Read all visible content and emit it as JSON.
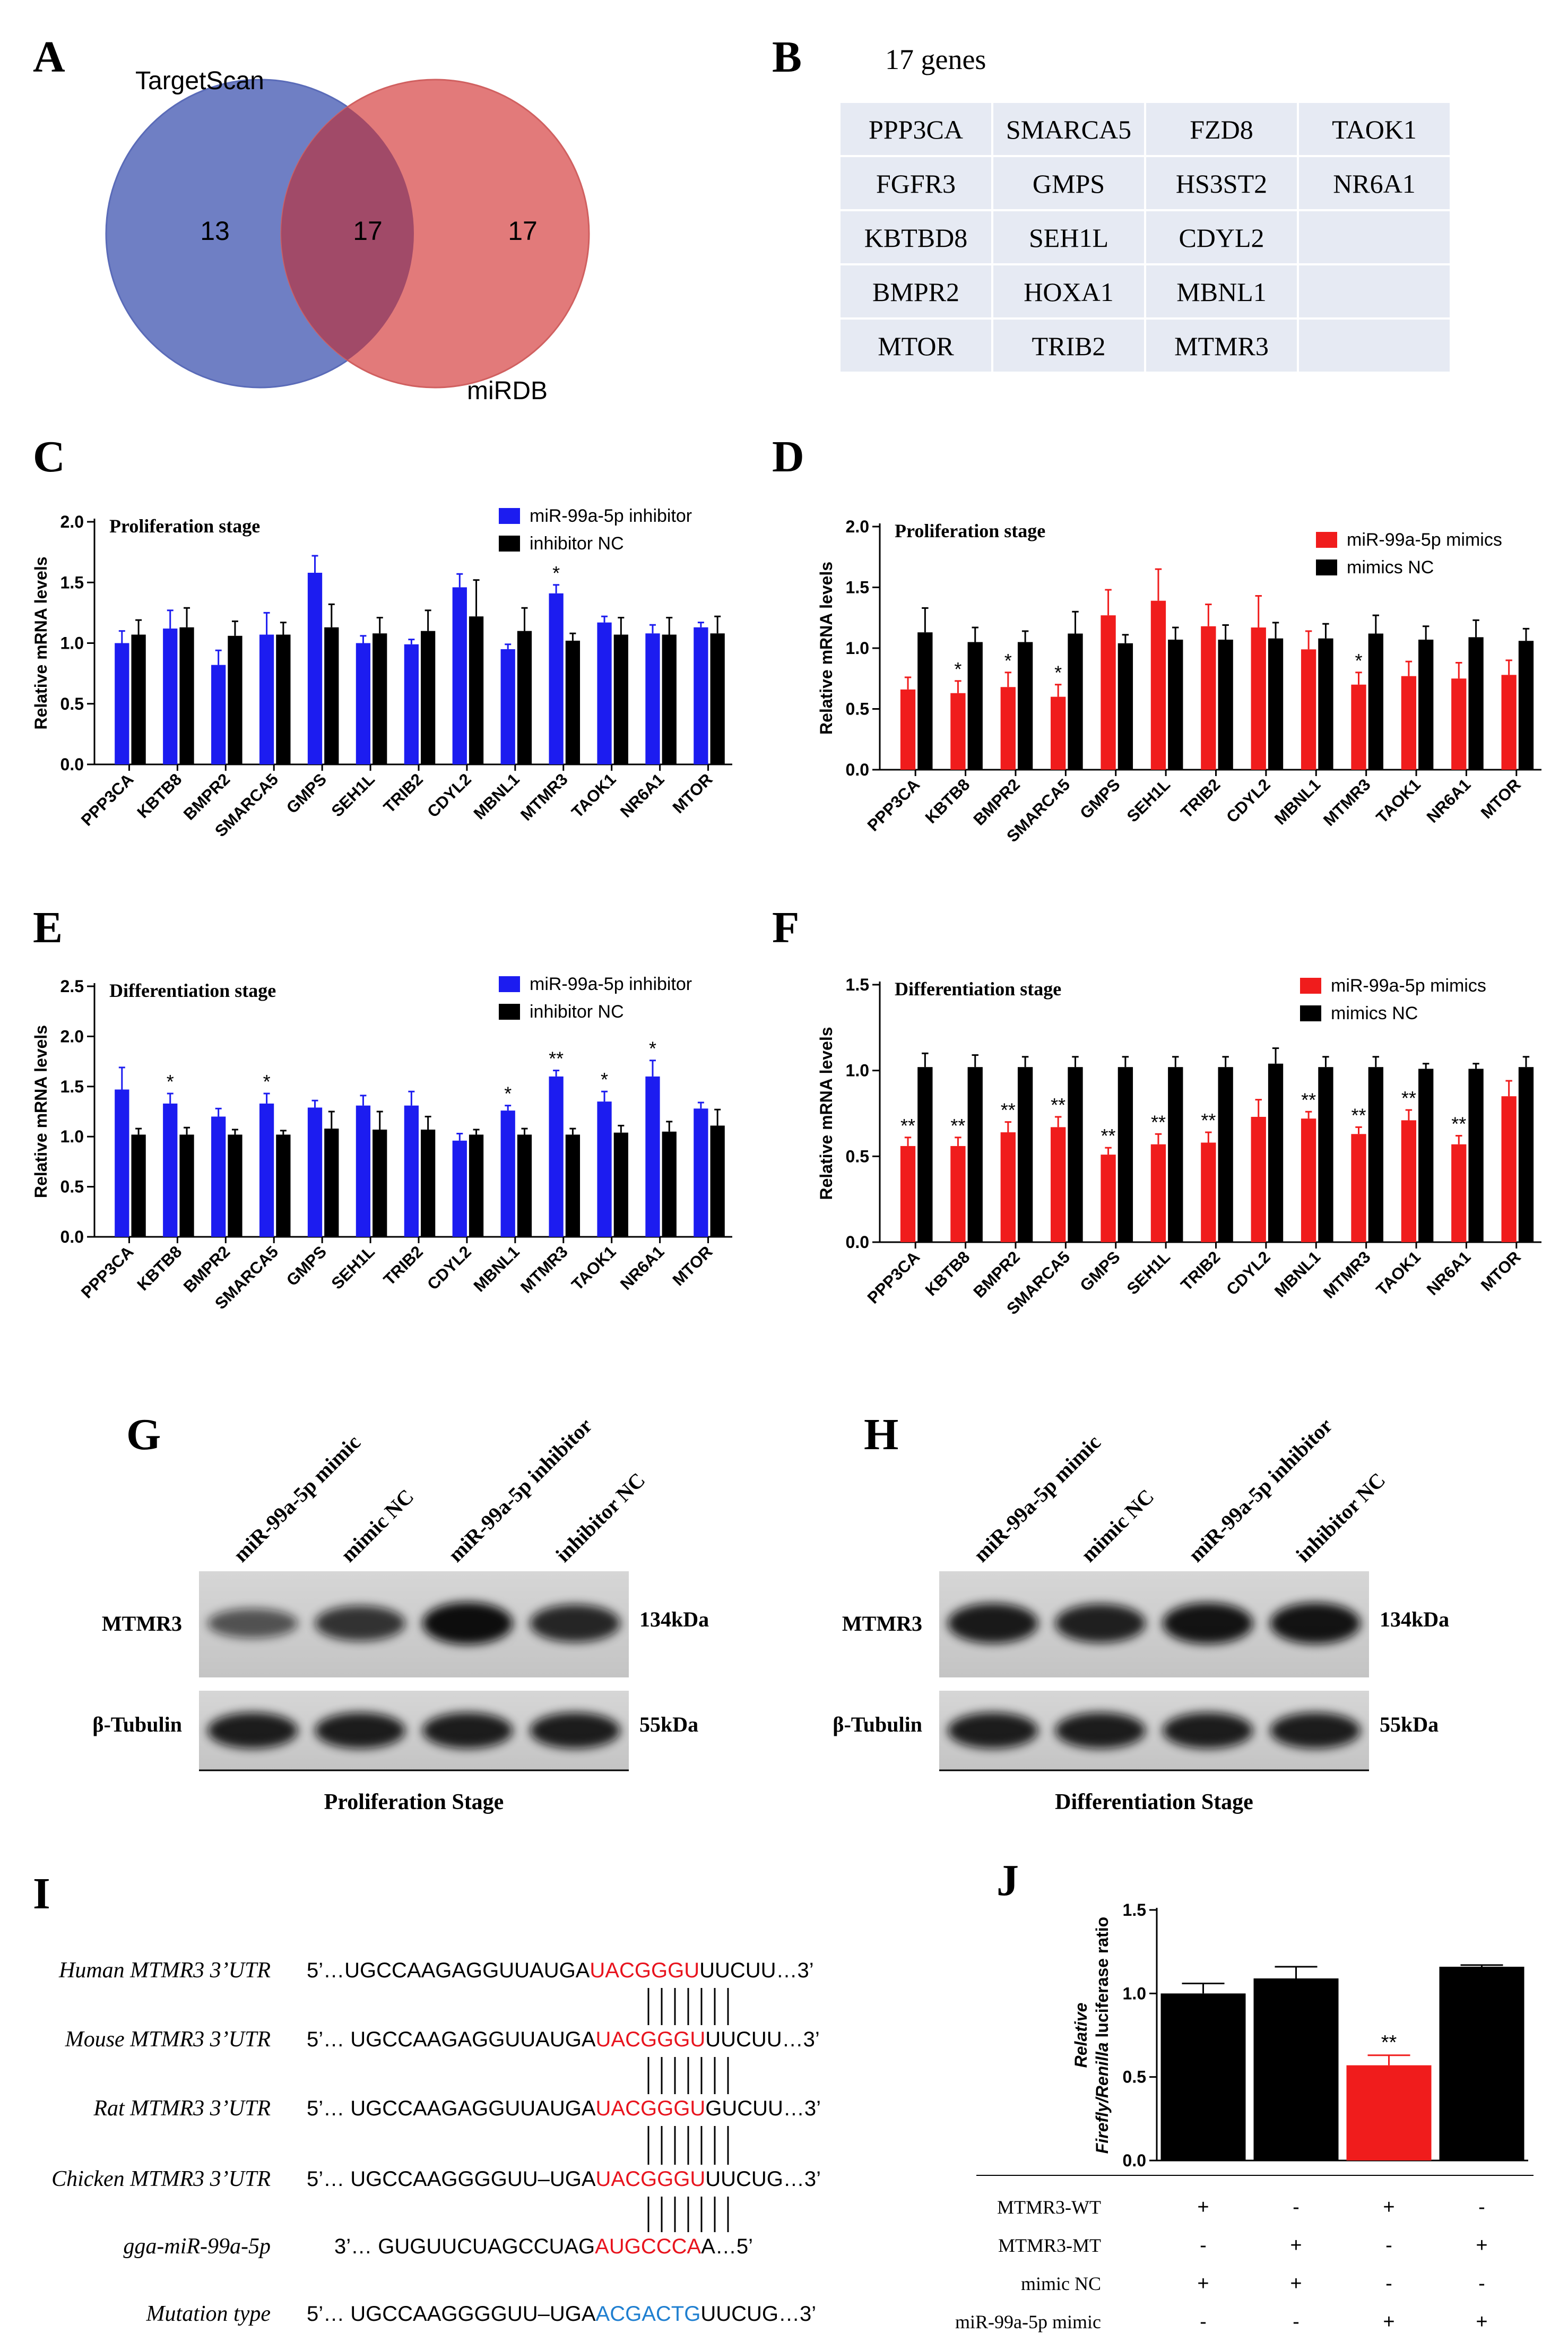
{
  "panel_labels": {
    "a": "A",
    "b": "B",
    "c": "C",
    "d": "D",
    "e": "E",
    "f": "F",
    "g": "G",
    "h": "H",
    "i": "I",
    "j": "J"
  },
  "venn": {
    "left_label": "TargetScan",
    "right_label": "miRDB",
    "left_only": "13",
    "overlap": "17",
    "right_only": "17"
  },
  "genes": {
    "header": "17 genes",
    "rows": [
      [
        "PPP3CA",
        "SMARCA5",
        "FZD8",
        "TAOK1"
      ],
      [
        "FGFR3",
        "GMPS",
        "HS3ST2",
        "NR6A1"
      ],
      [
        "KBTBD8",
        "SEH1L",
        "CDYL2",
        ""
      ],
      [
        "BMPR2",
        "HOXA1",
        "MBNL1",
        ""
      ],
      [
        "MTOR",
        "TRIB2",
        "MTMR3",
        ""
      ]
    ]
  },
  "colors": {
    "blue": "#1c1cf0",
    "red": "#f01c1c",
    "black": "#000000",
    "venn_blue": "#6f7fc4",
    "venn_red": "#e27a7a",
    "venn_overlap": "#a14a68",
    "table_bg": "#e6eaf3",
    "seq_red": "#e8141e",
    "seq_blue": "#1f7fd0"
  },
  "chart_data": [
    {
      "id": "C",
      "type": "bar",
      "title": "Proliferation stage",
      "ylabel": "Relative mRNA levels",
      "ylim": [
        0,
        2.0
      ],
      "yticks": [
        "0.0",
        "0.5",
        "1.0",
        "1.5",
        "2.0"
      ],
      "categories": [
        "PPP3CA",
        "KBTB8",
        "BMPR2",
        "SMARCA5",
        "GMPS",
        "SEH1L",
        "TRIB2",
        "CDYL2",
        "MBNL1",
        "MTMR3",
        "TAOK1",
        "NR6A1",
        "MTOR"
      ],
      "series": [
        {
          "name": "miR-99a-5p inhibitor",
          "color": "#1c1cf0",
          "values": [
            1.0,
            1.12,
            0.82,
            1.07,
            1.58,
            1.0,
            0.99,
            1.46,
            0.95,
            1.41,
            1.17,
            1.08,
            1.13
          ],
          "errors": [
            0.1,
            0.15,
            0.12,
            0.18,
            0.14,
            0.06,
            0.04,
            0.11,
            0.04,
            0.07,
            0.05,
            0.07,
            0.04
          ]
        },
        {
          "name": "inhibitor NC",
          "color": "#000000",
          "values": [
            1.07,
            1.13,
            1.06,
            1.07,
            1.13,
            1.08,
            1.1,
            1.22,
            1.1,
            1.02,
            1.07,
            1.07,
            1.08
          ],
          "errors": [
            0.12,
            0.16,
            0.12,
            0.1,
            0.19,
            0.13,
            0.17,
            0.3,
            0.19,
            0.06,
            0.14,
            0.14,
            0.14
          ]
        }
      ],
      "stars": [
        {
          "cat": 9,
          "text": "*"
        }
      ]
    },
    {
      "id": "D",
      "type": "bar",
      "title": "Proliferation stage",
      "ylabel": "Relative mRNA levels",
      "ylim": [
        0,
        2.0
      ],
      "yticks": [
        "0.0",
        "0.5",
        "1.0",
        "1.5",
        "2.0"
      ],
      "categories": [
        "PPP3CA",
        "KBTB8",
        "BMPR2",
        "SMARCA5",
        "GMPS",
        "SEH1L",
        "TRIB2",
        "CDYL2",
        "MBNL1",
        "MTMR3",
        "TAOK1",
        "NR6A1",
        "MTOR"
      ],
      "series": [
        {
          "name": "miR-99a-5p mimics",
          "color": "#f01c1c",
          "values": [
            0.66,
            0.63,
            0.68,
            0.6,
            1.27,
            1.39,
            1.18,
            1.17,
            0.99,
            0.7,
            0.77,
            0.75,
            0.78
          ],
          "errors": [
            0.1,
            0.1,
            0.12,
            0.1,
            0.21,
            0.26,
            0.18,
            0.26,
            0.15,
            0.1,
            0.12,
            0.13,
            0.12
          ]
        },
        {
          "name": "mimics NC",
          "color": "#000000",
          "values": [
            1.13,
            1.05,
            1.05,
            1.12,
            1.04,
            1.07,
            1.07,
            1.08,
            1.08,
            1.12,
            1.07,
            1.09,
            1.06
          ],
          "errors": [
            0.2,
            0.12,
            0.09,
            0.18,
            0.07,
            0.1,
            0.12,
            0.13,
            0.12,
            0.15,
            0.11,
            0.14,
            0.1
          ]
        }
      ],
      "stars": [
        {
          "cat": 1,
          "text": "*"
        },
        {
          "cat": 2,
          "text": "*"
        },
        {
          "cat": 3,
          "text": "*"
        },
        {
          "cat": 9,
          "text": "*"
        }
      ]
    },
    {
      "id": "E",
      "type": "bar",
      "title": "Differentiation stage",
      "ylabel": "Relative mRNA levels",
      "ylim": [
        0,
        2.5
      ],
      "yticks": [
        "0.0",
        "0.5",
        "1.0",
        "1.5",
        "2.0",
        "2.5"
      ],
      "categories": [
        "PPP3CA",
        "KBTB8",
        "BMPR2",
        "SMARCA5",
        "GMPS",
        "SEH1L",
        "TRIB2",
        "CDYL2",
        "MBNL1",
        "MTMR3",
        "TAOK1",
        "NR6A1",
        "MTOR"
      ],
      "series": [
        {
          "name": "miR-99a-5p inhibitor",
          "color": "#1c1cf0",
          "values": [
            1.47,
            1.33,
            1.2,
            1.33,
            1.29,
            1.31,
            1.31,
            0.96,
            1.26,
            1.6,
            1.35,
            1.6,
            1.28
          ],
          "errors": [
            0.22,
            0.1,
            0.08,
            0.1,
            0.07,
            0.1,
            0.14,
            0.07,
            0.05,
            0.06,
            0.1,
            0.16,
            0.06
          ]
        },
        {
          "name": "inhibitor NC",
          "color": "#000000",
          "values": [
            1.02,
            1.02,
            1.02,
            1.02,
            1.08,
            1.07,
            1.07,
            1.02,
            1.02,
            1.02,
            1.04,
            1.05,
            1.11
          ],
          "errors": [
            0.06,
            0.07,
            0.05,
            0.04,
            0.17,
            0.18,
            0.13,
            0.05,
            0.06,
            0.06,
            0.07,
            0.1,
            0.16
          ]
        }
      ],
      "stars": [
        {
          "cat": 1,
          "text": "*"
        },
        {
          "cat": 3,
          "text": "*"
        },
        {
          "cat": 8,
          "text": "*"
        },
        {
          "cat": 9,
          "text": "**"
        },
        {
          "cat": 10,
          "text": "*"
        },
        {
          "cat": 11,
          "text": "*"
        }
      ]
    },
    {
      "id": "F",
      "type": "bar",
      "title": "Differentiation stage",
      "ylabel": "Relative mRNA levels",
      "ylim": [
        0,
        1.5
      ],
      "yticks": [
        "0.0",
        "0.5",
        "1.0",
        "1.5"
      ],
      "categories": [
        "PPP3CA",
        "KBTB8",
        "BMPR2",
        "SMARCA5",
        "GMPS",
        "SEH1L",
        "TRIB2",
        "CDYL2",
        "MBNL1",
        "MTMR3",
        "TAOK1",
        "NR6A1",
        "MTOR"
      ],
      "series": [
        {
          "name": "miR-99a-5p mimics",
          "color": "#f01c1c",
          "values": [
            0.56,
            0.56,
            0.64,
            0.67,
            0.51,
            0.57,
            0.58,
            0.73,
            0.72,
            0.63,
            0.71,
            0.57,
            0.85
          ],
          "errors": [
            0.05,
            0.05,
            0.06,
            0.06,
            0.04,
            0.06,
            0.06,
            0.1,
            0.04,
            0.04,
            0.06,
            0.05,
            0.09
          ]
        },
        {
          "name": "mimics NC",
          "color": "#000000",
          "values": [
            1.02,
            1.02,
            1.02,
            1.02,
            1.02,
            1.02,
            1.02,
            1.04,
            1.02,
            1.02,
            1.01,
            1.01,
            1.02
          ],
          "errors": [
            0.08,
            0.07,
            0.06,
            0.06,
            0.06,
            0.06,
            0.06,
            0.09,
            0.06,
            0.06,
            0.03,
            0.03,
            0.06
          ]
        }
      ],
      "stars": [
        {
          "cat": 0,
          "text": "**"
        },
        {
          "cat": 1,
          "text": "**"
        },
        {
          "cat": 2,
          "text": "**"
        },
        {
          "cat": 3,
          "text": "**"
        },
        {
          "cat": 4,
          "text": "**"
        },
        {
          "cat": 5,
          "text": "**"
        },
        {
          "cat": 6,
          "text": "**"
        },
        {
          "cat": 8,
          "text": "**"
        },
        {
          "cat": 9,
          "text": "**"
        },
        {
          "cat": 10,
          "text": "**"
        },
        {
          "cat": 11,
          "text": "**"
        }
      ]
    },
    {
      "id": "J",
      "type": "bar",
      "ylabel_line1": "Relative",
      "ylabel_line2_a": "Firefly/Renilla",
      "ylabel_line2_b": " luciferase ratio",
      "ylim": [
        0,
        1.5
      ],
      "yticks": [
        "0.0",
        "0.5",
        "1.0",
        "1.5"
      ],
      "values": [
        1.0,
        1.09,
        0.57,
        1.16
      ],
      "errors": [
        0.06,
        0.07,
        0.06,
        0.01
      ],
      "colors": [
        "#000000",
        "#000000",
        "#f01c1c",
        "#000000"
      ],
      "stars": [
        {
          "cat": 2,
          "text": "**"
        }
      ],
      "conditions": [
        {
          "label": "MTMR3-WT",
          "marks": [
            "+",
            "-",
            "+",
            "-"
          ]
        },
        {
          "label": "MTMR3-MT",
          "marks": [
            "-",
            "+",
            "-",
            "+"
          ]
        },
        {
          "label": "mimic NC",
          "marks": [
            "+",
            "+",
            "-",
            "-"
          ]
        },
        {
          "label": "miR-99a-5p mimic",
          "marks": [
            "-",
            "-",
            "+",
            "+"
          ]
        }
      ]
    }
  ],
  "blots": {
    "g": {
      "lanes": [
        "miR-99a-5p mimic",
        "mimic NC",
        "miR-99a-5p inhibitor",
        "inhibitor NC"
      ],
      "row1": "MTMR3",
      "row1_kda": "134kDa",
      "row2": "β-Tubulin",
      "row2_kda": "55kDa",
      "caption": "Proliferation Stage",
      "mtmr3_intensity": [
        0.45,
        0.7,
        1.0,
        0.8
      ]
    },
    "h": {
      "lanes": [
        "miR-99a-5p mimic",
        "mimic NC",
        "miR-99a-5p inhibitor",
        "inhibitor NC"
      ],
      "row1": "MTMR3",
      "row1_kda": "134kDa",
      "row2": "β-Tubulin",
      "row2_kda": "55kDa",
      "caption": "Differentiation Stage",
      "mtmr3_intensity": [
        0.9,
        0.85,
        0.95,
        0.95
      ]
    }
  },
  "sequences": {
    "rows": [
      {
        "label": "Human MTMR3 3’UTR",
        "pre": "5’…UGCCAAGAGGUUAUGA",
        "seed": "UACGGGU",
        "post": "UUCUU…3’"
      },
      {
        "label": "Mouse MTMR3 3’UTR",
        "pre": "5’… UGCCAAGAGGUUAUGA",
        "seed": "UACGGGU",
        "post": "UUCUU…3’"
      },
      {
        "label": "Rat MTMR3 3’UTR",
        "pre": "5’… UGCCAAGAGGUUAUGA",
        "seed": "UACGGGU",
        "post": "GUCUU…3’"
      },
      {
        "label": "Chicken MTMR3 3’UTR",
        "pre": "5’… UGCCAAGGGGUU–UGA",
        "seed": "UACGGGU",
        "post": "UUCUG…3’"
      },
      {
        "label": "gga-miR-99a-5p",
        "pre": "3’… GUGUUCUAGCCUAG",
        "seed": "AUGCCCA",
        "post": "A…5’"
      },
      {
        "label": "Mutation type",
        "pre": "5’… UGCCAAGGGGUU–UGA",
        "seed": "ACGACTG",
        "post": "UUCUG…3’"
      }
    ]
  }
}
